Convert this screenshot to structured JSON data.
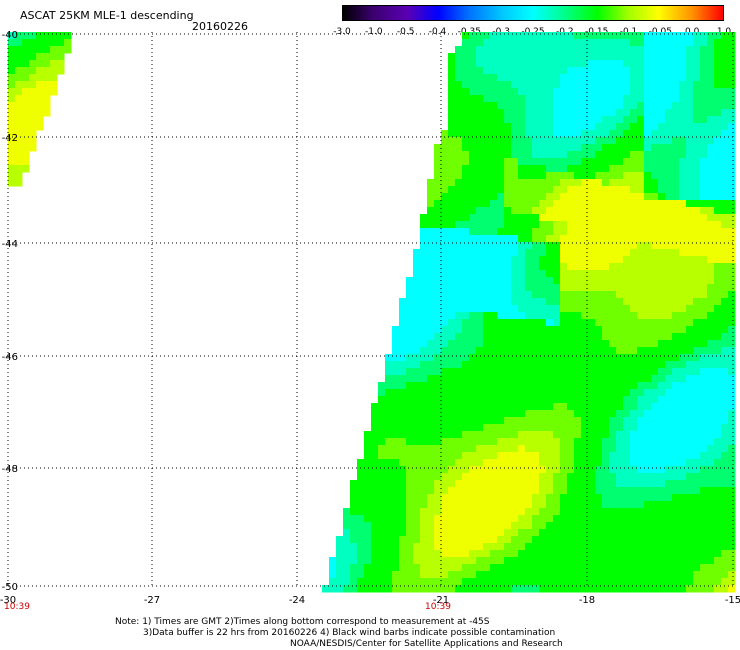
{
  "header": {
    "title": "ASCAT 25KM MLE-1 descending",
    "date": "20160226"
  },
  "colorbar": {
    "labels": [
      "-3.0",
      "-1.0",
      "-0.5",
      "-0.4",
      "-0.35",
      "-0.3",
      "-0.25",
      "-0.2",
      "-0.15",
      "-0.1",
      "-0.05",
      "0.0",
      "1.0"
    ],
    "colors": [
      "#000000",
      "#3c0070",
      "#5a00b4",
      "#0000ff",
      "#0070ff",
      "#00c8ff",
      "#00ffff",
      "#00ff90",
      "#00ff00",
      "#a0ff00",
      "#ffff00",
      "#ff9000",
      "#ff0000"
    ]
  },
  "map": {
    "lon_labels": [
      "-30",
      "-27",
      "-24",
      "-21",
      "-18",
      "-15"
    ],
    "lat_labels": [
      "-40",
      "-42",
      "-44",
      "-46",
      "-48",
      "-50"
    ],
    "time_labels": [
      "10:39",
      "10:39"
    ],
    "time_color": "#cc0000",
    "grid_color": "#000000"
  },
  "notes": {
    "line1": "Note: 1) Times are GMT 2)Times along bottom correspond to measurement at -45S",
    "line2": "3)Data buffer is 22 hrs from 20160226 4) Black wind barbs indicate possible contamination",
    "line3": "NOAA/NESDIS/Center for Satellite Applications and Research"
  }
}
